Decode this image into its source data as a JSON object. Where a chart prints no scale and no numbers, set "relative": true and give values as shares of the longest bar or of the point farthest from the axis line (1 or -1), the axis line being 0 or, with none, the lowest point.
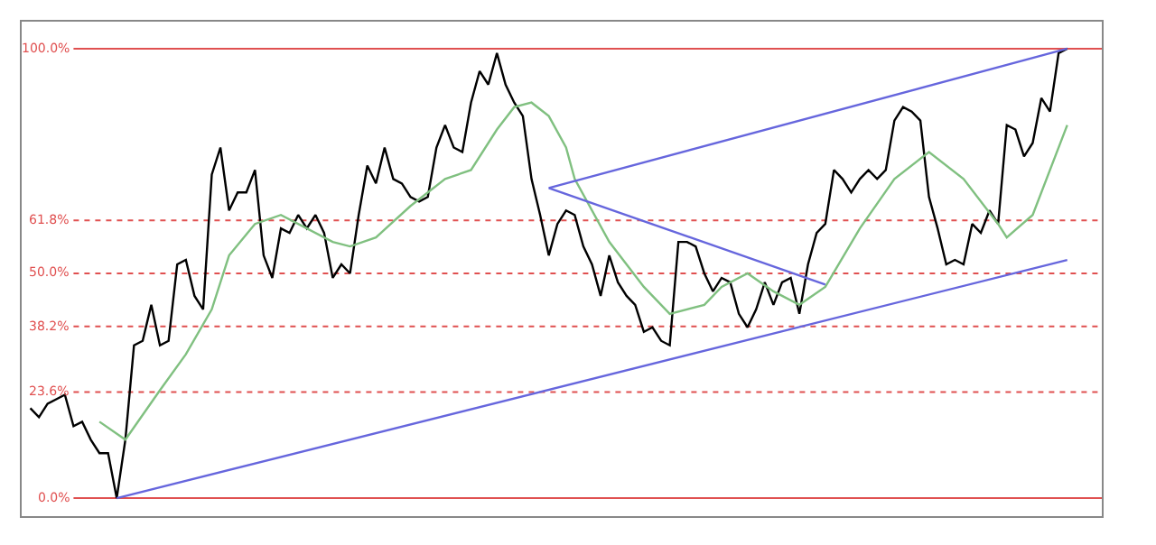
{
  "chart_data": {
    "type": "line",
    "relative": true,
    "categories": [
      null,
      null,
      null,
      null,
      null,
      null,
      null,
      null,
      null,
      null,
      null,
      null,
      null,
      null,
      null,
      null,
      null,
      null,
      null,
      null,
      null,
      null,
      null,
      null,
      null,
      null,
      null,
      null,
      null,
      null,
      null,
      null,
      null,
      null,
      null,
      null,
      null,
      null,
      null,
      null,
      null,
      null,
      null,
      null,
      null,
      null,
      null,
      null,
      null,
      null,
      null,
      null,
      null,
      null,
      null,
      null,
      null,
      null,
      null,
      null,
      null,
      null,
      null,
      null,
      null,
      null,
      null,
      null,
      null,
      null,
      null,
      null,
      null,
      null,
      null,
      null,
      null,
      null,
      null,
      null,
      null,
      null,
      null,
      null,
      null,
      null,
      null,
      null,
      null,
      null,
      null,
      null,
      null,
      null,
      null,
      null,
      null,
      null,
      null,
      null,
      null,
      null,
      null,
      null,
      null,
      null,
      null,
      null,
      null,
      null,
      null,
      null,
      null,
      null,
      null,
      null,
      null,
      null,
      null,
      null,
      null
    ],
    "series": [
      {
        "color": "#000000",
        "values": [
          0.2,
          0.18,
          0.21,
          0.22,
          0.23,
          0.16,
          0.17,
          0.13,
          0.1,
          0.1,
          0.0,
          0.13,
          0.34,
          0.35,
          0.43,
          0.34,
          0.35,
          0.52,
          0.53,
          0.45,
          0.42,
          0.72,
          0.78,
          0.64,
          0.68,
          0.68,
          0.73,
          0.54,
          0.49,
          0.6,
          0.59,
          0.63,
          0.6,
          0.63,
          0.59,
          0.49,
          0.52,
          0.5,
          0.63,
          0.74,
          0.7,
          0.78,
          0.71,
          0.7,
          0.67,
          0.66,
          0.67,
          0.78,
          0.83,
          0.78,
          0.77,
          0.88,
          0.95,
          0.92,
          0.99,
          0.92,
          0.88,
          0.85,
          0.71,
          0.63,
          0.54,
          0.61,
          0.64,
          0.63,
          0.56,
          0.52,
          0.45,
          0.54,
          0.48,
          0.45,
          0.43,
          0.37,
          0.38,
          0.35,
          0.34,
          0.57,
          0.57,
          0.56,
          0.5,
          0.46,
          0.49,
          0.48,
          0.41,
          0.38,
          0.42,
          0.48,
          0.43,
          0.48,
          0.49,
          0.41,
          0.52,
          0.59,
          0.61,
          0.73,
          0.71,
          0.68,
          0.71,
          0.73,
          0.71,
          0.73,
          0.84,
          0.87,
          0.86,
          0.84,
          0.67,
          0.6,
          0.52,
          0.53,
          0.52,
          0.61,
          0.59,
          0.64,
          0.61,
          0.83,
          0.82,
          0.76,
          0.79,
          0.89,
          0.86,
          0.99,
          1.0
        ]
      },
      {
        "color": "#80c080",
        "values": [
          null,
          null,
          null,
          null,
          null,
          null,
          null,
          null,
          0.17,
          null,
          null,
          0.13,
          null,
          null,
          null,
          0.24,
          null,
          null,
          0.32,
          null,
          null,
          0.42,
          null,
          0.54,
          null,
          null,
          0.61,
          null,
          null,
          0.63,
          null,
          null,
          0.6,
          null,
          null,
          0.57,
          null,
          0.56,
          null,
          null,
          0.58,
          null,
          null,
          null,
          0.65,
          null,
          null,
          null,
          0.71,
          null,
          null,
          0.73,
          null,
          null,
          0.82,
          null,
          0.87,
          null,
          0.88,
          null,
          0.85,
          null,
          0.78,
          0.71,
          null,
          null,
          null,
          0.57,
          null,
          null,
          null,
          0.47,
          null,
          null,
          0.41,
          null,
          null,
          null,
          0.43,
          null,
          0.47,
          null,
          null,
          0.5,
          null,
          null,
          0.46,
          null,
          null,
          0.43,
          null,
          null,
          0.47,
          null,
          null,
          null,
          0.6,
          null,
          null,
          null,
          0.71,
          null,
          null,
          null,
          0.77,
          null,
          null,
          null,
          0.71,
          null,
          null,
          null,
          0.61,
          0.58,
          null,
          null,
          0.63,
          null,
          null,
          null,
          0.83
        ]
      },
      {
        "color": "#6666dd",
        "values": [
          null,
          null,
          null,
          null,
          null,
          null,
          null,
          null,
          null,
          null,
          0.0,
          null,
          null,
          null,
          null,
          null,
          null,
          null,
          null,
          null,
          null,
          null,
          null,
          null,
          null,
          null,
          null,
          null,
          null,
          null,
          null,
          null,
          null,
          null,
          null,
          null,
          null,
          null,
          null,
          null,
          null,
          null,
          null,
          null,
          null,
          null,
          null,
          null,
          null,
          null,
          null,
          null,
          null,
          null,
          null,
          null,
          null,
          null,
          null,
          null,
          null,
          null,
          null,
          null,
          null,
          null,
          null,
          null,
          null,
          null,
          null,
          null,
          null,
          null,
          null,
          null,
          null,
          null,
          null,
          null,
          null,
          null,
          null,
          null,
          null,
          null,
          null,
          null,
          null,
          null,
          null,
          null,
          null,
          null,
          null,
          null,
          null,
          null,
          null,
          null,
          null,
          null,
          null,
          null,
          null,
          null,
          null,
          null,
          null,
          null,
          null,
          null,
          null,
          null,
          null,
          null,
          null,
          null,
          null,
          null,
          0.53
        ]
      },
      {
        "color": "#6666dd",
        "values": [
          null,
          null,
          null,
          null,
          null,
          null,
          null,
          null,
          null,
          null,
          null,
          null,
          null,
          null,
          null,
          null,
          null,
          null,
          null,
          null,
          null,
          null,
          null,
          null,
          null,
          null,
          null,
          null,
          null,
          null,
          null,
          null,
          null,
          null,
          null,
          null,
          null,
          null,
          null,
          null,
          null,
          null,
          null,
          null,
          null,
          null,
          null,
          null,
          null,
          null,
          null,
          null,
          null,
          null,
          null,
          null,
          null,
          null,
          null,
          null,
          0.69,
          null,
          null,
          null,
          null,
          null,
          null,
          null,
          null,
          null,
          null,
          null,
          null,
          null,
          null,
          null,
          null,
          null,
          null,
          null,
          null,
          null,
          null,
          null,
          null,
          null,
          null,
          null,
          null,
          null,
          null,
          null,
          null,
          null,
          null,
          null,
          null,
          null,
          null,
          null,
          null,
          null,
          null,
          null,
          null,
          null,
          null,
          null,
          null,
          null,
          null,
          null,
          null,
          null,
          null,
          null,
          null,
          null,
          null,
          null,
          1.0
        ]
      },
      {
        "color": "#6666dd",
        "values": [
          null,
          null,
          null,
          null,
          null,
          null,
          null,
          null,
          null,
          null,
          null,
          null,
          null,
          null,
          null,
          null,
          null,
          null,
          null,
          null,
          null,
          null,
          null,
          null,
          null,
          null,
          null,
          null,
          null,
          null,
          null,
          null,
          null,
          null,
          null,
          null,
          null,
          null,
          null,
          null,
          null,
          null,
          null,
          null,
          null,
          null,
          null,
          null,
          null,
          null,
          null,
          null,
          null,
          null,
          null,
          null,
          null,
          null,
          null,
          null,
          0.69,
          null,
          null,
          null,
          null,
          null,
          null,
          null,
          null,
          null,
          null,
          null,
          null,
          null,
          null,
          null,
          null,
          null,
          null,
          null,
          null,
          null,
          null,
          null,
          null,
          null,
          null,
          null,
          null,
          null,
          null,
          null,
          0.475,
          null,
          null,
          null,
          null,
          null,
          null,
          null,
          null,
          null,
          null,
          null,
          null,
          null,
          null,
          null,
          null,
          null,
          null,
          null,
          null,
          null,
          null,
          null,
          null,
          null,
          null,
          null,
          null
        ]
      }
    ],
    "ref_lines": [
      {
        "axis": "y",
        "value": 0,
        "label": "0.0%",
        "color": "#e05050",
        "line_style": "solid"
      },
      {
        "axis": "y",
        "value": 0.236,
        "label": "23.6%",
        "color": "#e05050",
        "line_style": "dotted"
      },
      {
        "axis": "y",
        "value": 0.382,
        "label": "38.2%",
        "color": "#e05050",
        "line_style": "dotted"
      },
      {
        "axis": "y",
        "value": 0.5,
        "label": "50.0%",
        "color": "#e05050",
        "line_style": "dotted"
      },
      {
        "axis": "y",
        "value": 0.618,
        "label": "61.8%",
        "color": "#e05050",
        "line_style": "dotted"
      },
      {
        "axis": "y",
        "value": 1,
        "label": "100.0%",
        "color": "#e05050",
        "line_style": "solid"
      }
    ]
  }
}
